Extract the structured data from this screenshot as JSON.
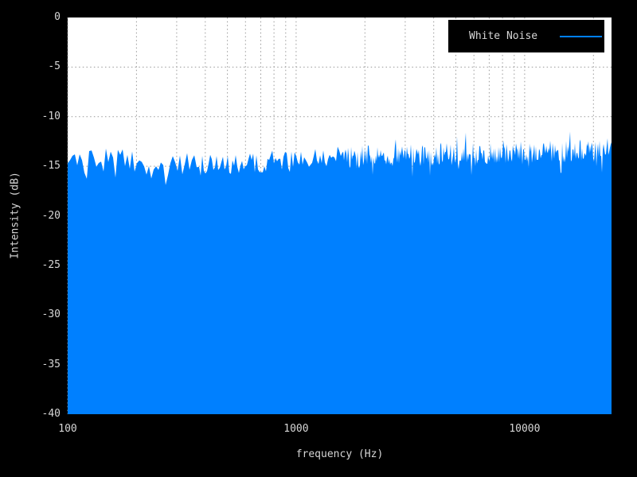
{
  "canvas": {
    "background": "#000000",
    "plot_background": "#ffffff",
    "grid_color": "#999999",
    "text_color": "#d6d6d6"
  },
  "chart_data": {
    "type": "area",
    "title": "",
    "xlabel": "frequency (Hz)",
    "ylabel": "Intensity (dB)",
    "x_scale": "log",
    "xlim": [
      100,
      24000
    ],
    "ylim": [
      -40,
      0
    ],
    "grid": true,
    "legend_position": "top-right",
    "xticks": [
      {
        "value": 100,
        "label": "100"
      },
      {
        "value": 1000,
        "label": "1000"
      },
      {
        "value": 10000,
        "label": "10000"
      }
    ],
    "yticks": [
      {
        "value": 0,
        "label": "0"
      },
      {
        "value": -5,
        "label": "-5"
      },
      {
        "value": -10,
        "label": "-10"
      },
      {
        "value": -15,
        "label": "-15"
      },
      {
        "value": -20,
        "label": "-20"
      },
      {
        "value": -25,
        "label": "-25"
      },
      {
        "value": -30,
        "label": "-30"
      },
      {
        "value": -35,
        "label": "-35"
      },
      {
        "value": -40,
        "label": "-40"
      }
    ],
    "series": [
      {
        "name": "White Noise",
        "color": "#0080ff",
        "fill": true,
        "baseline_db": -40,
        "envelope_points": [
          [
            100,
            -14.7
          ],
          [
            115,
            -14.9
          ],
          [
            130,
            -14.4
          ],
          [
            145,
            -14.0
          ],
          [
            160,
            -14.3
          ],
          [
            180,
            -14.1
          ],
          [
            200,
            -14.5
          ],
          [
            230,
            -15.1
          ],
          [
            260,
            -15.4
          ],
          [
            300,
            -15.0
          ],
          [
            340,
            -14.7
          ],
          [
            390,
            -14.9
          ],
          [
            450,
            -14.6
          ],
          [
            520,
            -14.8
          ],
          [
            600,
            -14.4
          ],
          [
            700,
            -14.6
          ],
          [
            800,
            -14.3
          ],
          [
            950,
            -14.5
          ],
          [
            1100,
            -14.1
          ],
          [
            1300,
            -14.3
          ],
          [
            1500,
            -14.0
          ],
          [
            1800,
            -14.2
          ],
          [
            2100,
            -13.9
          ],
          [
            2500,
            -14.1
          ],
          [
            3000,
            -13.8
          ],
          [
            3500,
            -14.0
          ],
          [
            4200,
            -13.7
          ],
          [
            5000,
            -13.9
          ],
          [
            6000,
            -13.6
          ],
          [
            7000,
            -13.8
          ],
          [
            8500,
            -13.5
          ],
          [
            10000,
            -13.7
          ],
          [
            12000,
            -13.4
          ],
          [
            14500,
            -13.5
          ],
          [
            17000,
            -13.3
          ],
          [
            20000,
            -13.4
          ],
          [
            24000,
            -13.2
          ]
        ],
        "noise": {
          "seed": 20240917,
          "jitter_db": 1.15,
          "spike_prob": 0.05,
          "spike_db": 2.2
        }
      }
    ]
  }
}
